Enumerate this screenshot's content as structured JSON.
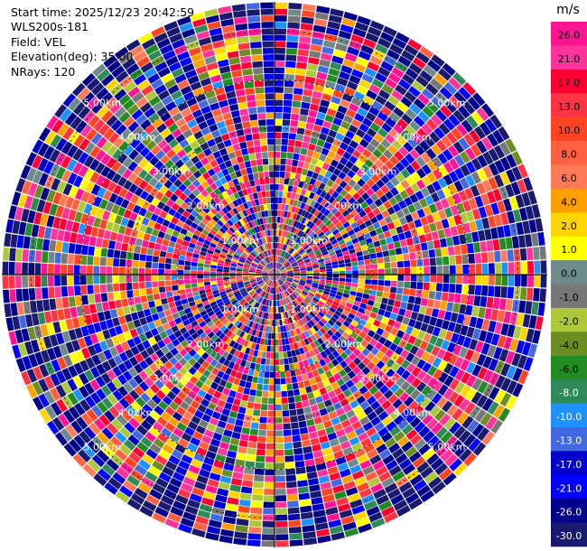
{
  "header": {
    "start_time": "Start time: 2025/12/23 20:42:59",
    "instrument": "WLS200s-181",
    "field": "Field: VEL",
    "elevation": "Elevation(deg): 35.00",
    "nrays": "NRays: 120"
  },
  "chart_data": {
    "type": "heatmap",
    "projection": "polar-ppi",
    "field": "VEL",
    "elevation_deg": 35.0,
    "n_rays": 120,
    "range_rings_km": [
      1.0,
      2.0,
      3.0,
      4.0,
      5.0
    ],
    "ring_labels": [
      "1.00km",
      "2.00km",
      "3.00km",
      "4.00km",
      "5.00km"
    ],
    "colorbar": {
      "unit": "m/s",
      "ticks": [
        "26.0",
        "21.0",
        "17.0",
        "13.0",
        "10.0",
        "8.0",
        "6.0",
        "4.0",
        "2.0",
        "1.0",
        "0.0",
        "-1.0",
        "-2.0",
        "-4.0",
        "-6.0",
        "-8.0",
        "-10.0",
        "-13.0",
        "-17.0",
        "-21.0",
        "-26.0",
        "-30.0"
      ],
      "colors": [
        "#ff1493",
        "#ff3399",
        "#ff0033",
        "#ff3344",
        "#ff4422",
        "#ff6040",
        "#ff7a55",
        "#ffa000",
        "#ffd500",
        "#ffff00",
        "#6e8a8a",
        "#777777",
        "#adc93a",
        "#6b8e23",
        "#228b22",
        "#2e8b57",
        "#1e90ff",
        "#4169e1",
        "#0000cd",
        "#0000ff",
        "#00008b",
        "#191970"
      ]
    }
  }
}
